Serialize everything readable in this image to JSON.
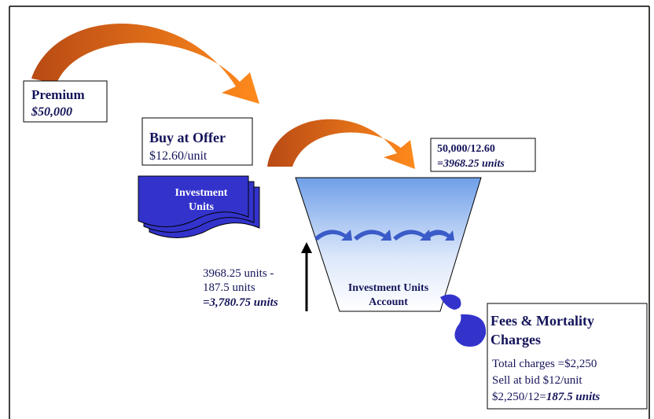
{
  "premium": {
    "title": "Premium",
    "amount": "$50,000"
  },
  "buy": {
    "title": "Buy at Offer",
    "price": "$12.60/unit"
  },
  "units_doc": {
    "label": "Investment Units"
  },
  "purchase_calc": {
    "line1": "50,000/12.60",
    "line2": "=3968.25 units"
  },
  "account": {
    "label": "Investment Units Account"
  },
  "balance": {
    "line1": "3968.25 units -",
    "line2": "187.5 units",
    "line3": "=3,780.75 units"
  },
  "fees": {
    "title1": "Fees & Mortality",
    "title2": "Charges",
    "line1": "Total charges =$2,250",
    "line2": "Sell at bid $12/unit",
    "line3a": "$2,250/12=",
    "line3b": "187.5 units"
  }
}
